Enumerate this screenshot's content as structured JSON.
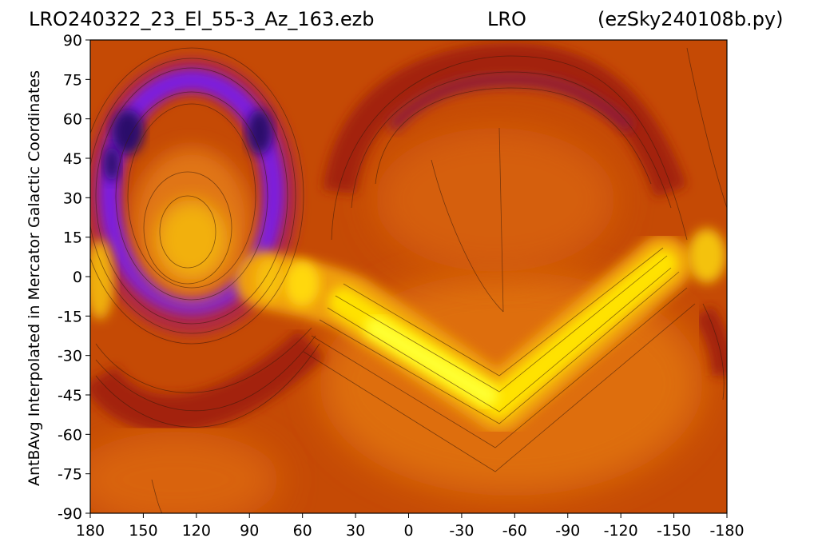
{
  "header": {
    "left": "LRO240322_23_El_55-3_Az_163.ezb",
    "center": "LRO",
    "right": "(ezSky240108b.py)"
  },
  "chart_data": {
    "type": "heatmap",
    "ylabel": "AntBAvg Interpolated in Mercator Galactic Coordinates",
    "xlabel": "",
    "xlim": [
      180,
      -180
    ],
    "ylim": [
      -90,
      90
    ],
    "x_ticks": [
      "180",
      "150",
      "120",
      "90",
      "60",
      "30",
      "0",
      "-30",
      "-60",
      "-90",
      "-120",
      "-150",
      "-180"
    ],
    "y_ticks": [
      "90",
      "75",
      "60",
      "45",
      "30",
      "15",
      "0",
      "-15",
      "-30",
      "-45",
      "-60",
      "-75",
      "-90"
    ],
    "colormap": "gnuplot",
    "colors": {
      "background": "#c54a05",
      "low": "#7a1fd8",
      "low_edge": "#a0155a",
      "high": "#ffff00",
      "mid": "#e88a10"
    },
    "contours": true
  }
}
